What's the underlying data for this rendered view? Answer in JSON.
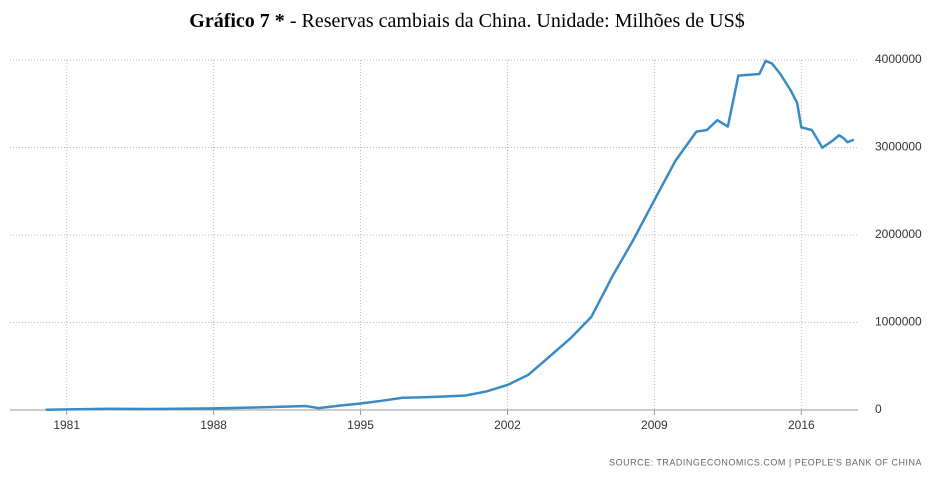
{
  "chart_data": {
    "type": "line",
    "title": [
      "Gráfico 7 *",
      " - Reservas cambiais da China. Unidade: Milhões de US$"
    ],
    "source": "SOURCE: TRADINGECONOMICS.COM | PEOPLE'S BANK OF CHINA",
    "x": [
      1980,
      1983,
      1985,
      1988,
      1990,
      1992.4,
      1993,
      1994,
      1995,
      1996,
      1997,
      1998,
      1999,
      2000,
      2001,
      2002,
      2003,
      2004,
      2005,
      2006,
      2007,
      2008,
      2009,
      2010,
      2011,
      2011.5,
      2012,
      2012.5,
      2013,
      2014,
      2014.3,
      2014.6,
      2015,
      2015.5,
      2015.8,
      2016,
      2016.5,
      2017,
      2017.5,
      2017.8,
      2018,
      2018.2,
      2018.5
    ],
    "series": [
      {
        "color": "#3a8bc4",
        "values": [
          2500,
          14000,
          12000,
          18000,
          28000,
          45000,
          21000,
          50000,
          74000,
          105000,
          140000,
          145000,
          155000,
          166000,
          212000,
          286000,
          403000,
          610000,
          819000,
          1066000,
          1528000,
          1946000,
          2399000,
          2847000,
          3181000,
          3200000,
          3312000,
          3240000,
          3821000,
          3840000,
          3990000,
          3960000,
          3840000,
          3650000,
          3510000,
          3230000,
          3200000,
          2998000,
          3080000,
          3140000,
          3110000,
          3060000,
          3090000
        ]
      }
    ],
    "xlim": [
      1978.3,
      2018.7
    ],
    "xticks": [
      1981,
      1988,
      1995,
      2002,
      2009,
      2016
    ],
    "ylim": [
      0,
      4000000
    ],
    "yticks": [
      0,
      1000000,
      2000000,
      3000000,
      4000000
    ],
    "grid": true
  }
}
